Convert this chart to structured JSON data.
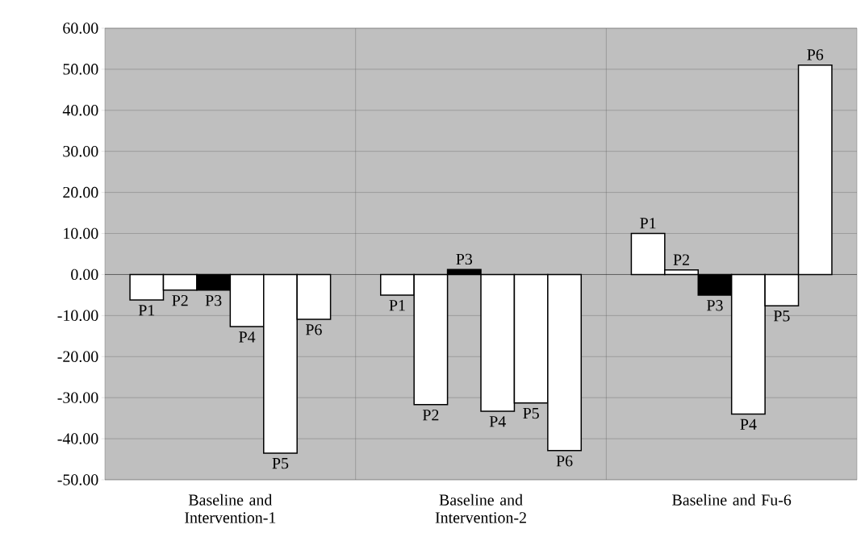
{
  "chart_data": {
    "type": "bar",
    "categories": [
      "Baseline and Intervention-1",
      "Baseline and Intervention-2",
      "Baseline and Fu-6"
    ],
    "series": [
      {
        "name": "P1",
        "color": "#ffffff",
        "values": [
          -6.2,
          -5.0,
          10.0
        ]
      },
      {
        "name": "P2",
        "color": "#ffffff",
        "values": [
          -3.8,
          -31.7,
          1.1
        ]
      },
      {
        "name": "P3",
        "color": "#000000",
        "values": [
          -3.8,
          1.2,
          -5.0
        ]
      },
      {
        "name": "P4",
        "color": "#ffffff",
        "values": [
          -12.7,
          -33.3,
          -34.0
        ]
      },
      {
        "name": "P5",
        "color": "#ffffff",
        "values": [
          -43.5,
          -31.3,
          -7.6
        ]
      },
      {
        "name": "P6",
        "color": "#ffffff",
        "values": [
          -10.9,
          -42.9,
          51.0
        ]
      }
    ],
    "ylim": [
      -50,
      60
    ],
    "yticks": [
      {
        "value": -50,
        "label": "-50.00"
      },
      {
        "value": -40,
        "label": "-40.00"
      },
      {
        "value": -30,
        "label": "-30.00"
      },
      {
        "value": -20,
        "label": "-20.00"
      },
      {
        "value": -10,
        "label": "-10.00"
      },
      {
        "value": 0,
        "label": "0.00"
      },
      {
        "value": 10,
        "label": "10.00"
      },
      {
        "value": 20,
        "label": "20.00"
      },
      {
        "value": 30,
        "label": "30.00"
      },
      {
        "value": 40,
        "label": "40.00"
      },
      {
        "value": 50,
        "label": "50.00"
      },
      {
        "value": 60,
        "label": "60.00"
      }
    ],
    "grid": true,
    "legend": false
  }
}
